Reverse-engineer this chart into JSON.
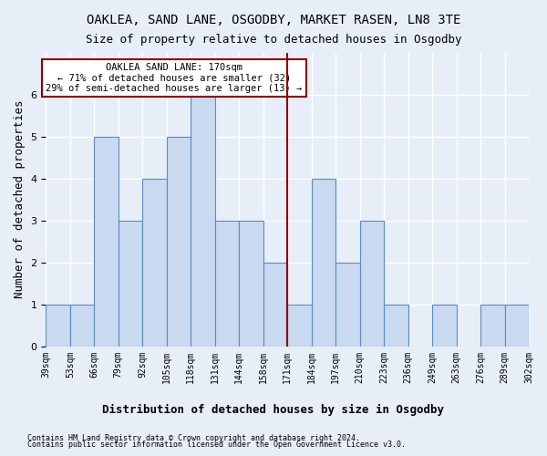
{
  "title1": "OAKLEA, SAND LANE, OSGODBY, MARKET RASEN, LN8 3TE",
  "title2": "Size of property relative to detached houses in Osgodby",
  "xlabel": "Distribution of detached houses by size in Osgodby",
  "ylabel": "Number of detached properties",
  "footer1": "Contains HM Land Registry data © Crown copyright and database right 2024.",
  "footer2": "Contains public sector information licensed under the Open Government Licence v3.0.",
  "tick_labels": [
    "39sqm",
    "53sqm",
    "66sqm",
    "79sqm",
    "92sqm",
    "105sqm",
    "118sqm",
    "131sqm",
    "144sqm",
    "158sqm",
    "171sqm",
    "184sqm",
    "197sqm",
    "210sqm",
    "223sqm",
    "236sqm",
    "249sqm",
    "263sqm",
    "276sqm",
    "289sqm",
    "302sqm"
  ],
  "bar_values": [
    1,
    1,
    5,
    3,
    4,
    5,
    6,
    3,
    3,
    2,
    1,
    4,
    2,
    3,
    1,
    0,
    1,
    0,
    1,
    1
  ],
  "bar_color": "#c9d9f0",
  "bar_edge_color": "#5b8ac5",
  "vline_color": "#8b0000",
  "annotation_title": "OAKLEA SAND LANE: 170sqm",
  "annotation_line1": "← 71% of detached houses are smaller (32)",
  "annotation_line2": "29% of semi-detached houses are larger (13) →",
  "annotation_box_color": "#8b0000",
  "ylim": [
    0,
    7
  ],
  "yticks": [
    0,
    1,
    2,
    3,
    4,
    5,
    6
  ],
  "background_color": "#e8eef8",
  "grid_color": "#ffffff",
  "title1_fontsize": 10,
  "title2_fontsize": 9,
  "xlabel_fontsize": 9,
  "ylabel_fontsize": 9
}
